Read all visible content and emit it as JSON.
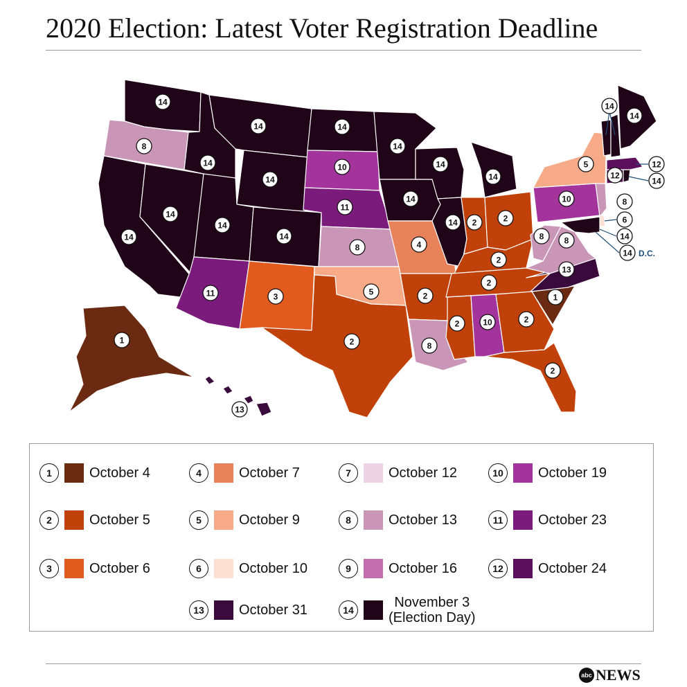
{
  "title": "2020 Election: Latest Voter Registration Deadline",
  "colors": {
    "1": "#6b2a12",
    "2": "#c0420a",
    "3": "#e15a1e",
    "4": "#e8825a",
    "5": "#f6aa88",
    "6": "#fde0d4",
    "7": "#ecd3e3",
    "8": "#c996b8",
    "9": "#c36faf",
    "10": "#a2349c",
    "11": "#7b1c7c",
    "12": "#5c0f5c",
    "13": "#3a0a3c",
    "14": "#200519"
  },
  "legend": [
    {
      "num": "1",
      "label": "October 4"
    },
    {
      "num": "2",
      "label": "October 5"
    },
    {
      "num": "3",
      "label": "October 6"
    },
    {
      "num": "4",
      "label": "October 7"
    },
    {
      "num": "5",
      "label": "October 9"
    },
    {
      "num": "6",
      "label": "October 10"
    },
    {
      "num": "7",
      "label": "October 12"
    },
    {
      "num": "8",
      "label": "October 13"
    },
    {
      "num": "9",
      "label": "October 16"
    },
    {
      "num": "10",
      "label": "October 19"
    },
    {
      "num": "11",
      "label": "October 23"
    },
    {
      "num": "12",
      "label": "October 24"
    },
    {
      "num": "13",
      "label": "October 31"
    },
    {
      "num": "14",
      "label": "November 3\n(Election Day)"
    }
  ],
  "states": {
    "WA": "14",
    "OR": "8",
    "CA": "14",
    "NV": "14",
    "ID": "14",
    "MT": "14",
    "WY": "14",
    "UT": "14",
    "AZ": "11",
    "CO": "14",
    "NM": "3",
    "ND": "14",
    "SD": "10",
    "NE": "11",
    "KS": "8",
    "OK": "5",
    "TX": "2",
    "MN": "14",
    "IA": "14",
    "MO": "4",
    "AR": "2",
    "LA": "8",
    "WI": "14",
    "IL": "14",
    "MI": "14",
    "IN": "2",
    "OH": "2",
    "KY": "2",
    "TN": "2",
    "MS": "2",
    "AL": "10",
    "GA": "2",
    "FL": "2",
    "SC": "1",
    "NC": "13",
    "VA": "8",
    "WV": "8",
    "PA": "10",
    "NY": "5",
    "NJ": "8",
    "DE": "6",
    "MD": "14",
    "DC": "14",
    "CT": "12",
    "RI": "14",
    "MA": "12",
    "VT": "14",
    "NH": "14",
    "ME": "14",
    "AK": "1",
    "HI": "13"
  },
  "dc_label": "D.C.",
  "brand": {
    "logo": "abc",
    "text": "NEWS"
  }
}
